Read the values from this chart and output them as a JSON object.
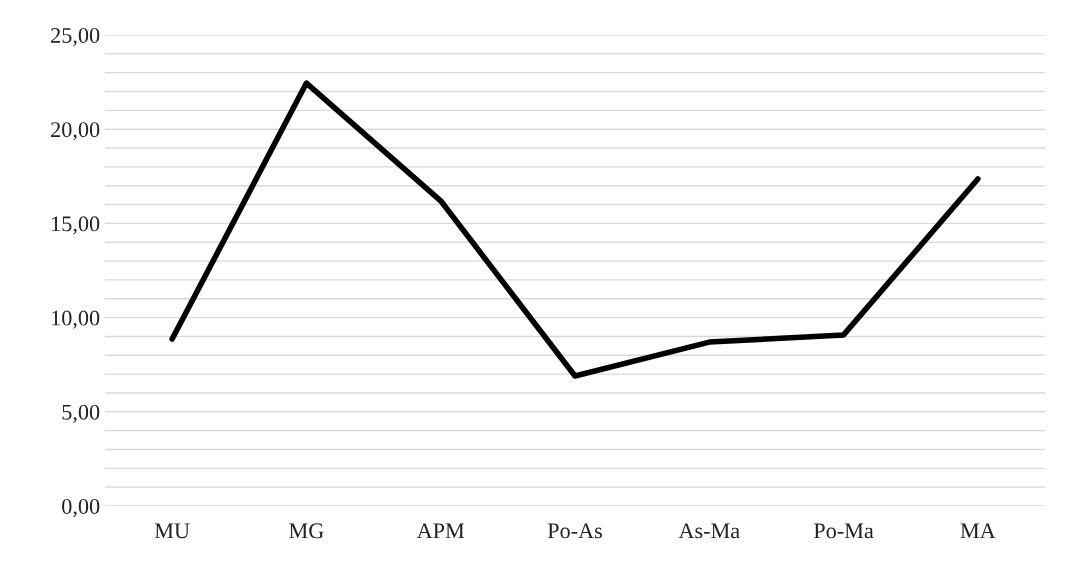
{
  "chart_data": {
    "type": "line",
    "categories": [
      "MU",
      "MG",
      "APM",
      "Po-As",
      "As-Ma",
      "Po-Ma",
      "MA"
    ],
    "series": [
      {
        "color": "#000000",
        "values": [
          8.86,
          22.45,
          16.2,
          6.9,
          8.7,
          9.08,
          17.36
        ]
      }
    ],
    "ylim": [
      0,
      25
    ],
    "yticks": [
      {
        "value": 0,
        "label": "0,00"
      },
      {
        "value": 1,
        "label": null
      },
      {
        "value": 2,
        "label": null
      },
      {
        "value": 3,
        "label": null
      },
      {
        "value": 4,
        "label": null
      },
      {
        "value": 5,
        "label": "5,00"
      },
      {
        "value": 6,
        "label": null
      },
      {
        "value": 7,
        "label": null
      },
      {
        "value": 8,
        "label": null
      },
      {
        "value": 9,
        "label": null
      },
      {
        "value": 10,
        "label": "10,00"
      },
      {
        "value": 11,
        "label": null
      },
      {
        "value": 12,
        "label": null
      },
      {
        "value": 13,
        "label": null
      },
      {
        "value": 14,
        "label": null
      },
      {
        "value": 15,
        "label": "15,00"
      },
      {
        "value": 16,
        "label": null
      },
      {
        "value": 17,
        "label": null
      },
      {
        "value": 18,
        "label": null
      },
      {
        "value": 19,
        "label": null
      },
      {
        "value": 20,
        "label": "20,00"
      },
      {
        "value": 21,
        "label": null
      },
      {
        "value": 22,
        "label": null
      },
      {
        "value": 23,
        "label": null
      },
      {
        "value": 24,
        "label": null
      },
      {
        "value": 25,
        "label": "25,00"
      }
    ],
    "grid": "y",
    "legend": false,
    "marker": "none",
    "line_style": "solid"
  }
}
